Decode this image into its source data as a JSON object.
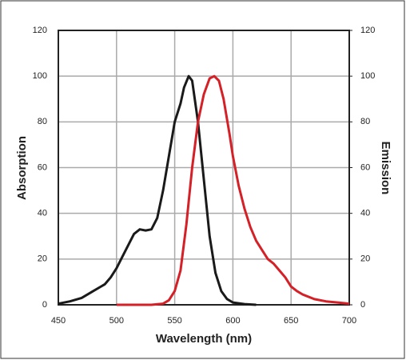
{
  "chart_data": {
    "type": "line",
    "xlabel": "Wavelength (nm)",
    "ylabel": "Absorption",
    "y2label": "Emission",
    "series": [
      {
        "color": "#1a1a1a",
        "x": [
          450,
          460,
          470,
          480,
          490,
          495,
          500,
          505,
          510,
          515,
          520,
          525,
          530,
          535,
          540,
          545,
          550,
          555,
          558,
          562,
          565,
          570,
          575,
          580,
          585,
          590,
          595,
          600,
          610,
          620
        ],
        "values": [
          0.5,
          1.5,
          3,
          6,
          9,
          12,
          16,
          21,
          26,
          31,
          33,
          32.5,
          33,
          38,
          50,
          65,
          80,
          88,
          95,
          100,
          98,
          80,
          55,
          30,
          14,
          6,
          2.5,
          1,
          0.3,
          0
        ]
      },
      {
        "color": "#d42026",
        "axis": "y2",
        "x": [
          500,
          520,
          530,
          540,
          545,
          550,
          555,
          560,
          565,
          570,
          575,
          580,
          584,
          588,
          592,
          597,
          600,
          605,
          610,
          615,
          620,
          625,
          630,
          635,
          640,
          645,
          650,
          655,
          660,
          670,
          680,
          690,
          700
        ],
        "values": [
          0,
          0,
          0,
          0.5,
          2,
          6,
          15,
          35,
          60,
          80,
          92,
          99,
          100,
          98,
          90,
          75,
          65,
          52,
          42,
          34,
          28,
          24,
          20,
          18,
          15,
          12,
          8,
          6,
          4.5,
          2.5,
          1.5,
          1,
          0.5
        ]
      }
    ],
    "xlim": [
      450,
      700
    ],
    "xticks": [
      450,
      500,
      550,
      600,
      650,
      700
    ],
    "ylim": [
      0,
      120
    ],
    "yticks": [
      0,
      20,
      40,
      60,
      80,
      100,
      120
    ],
    "y2lim": [
      0,
      120
    ],
    "y2ticks": [
      0,
      20,
      40,
      60,
      80,
      100,
      120
    ],
    "grid": true
  }
}
